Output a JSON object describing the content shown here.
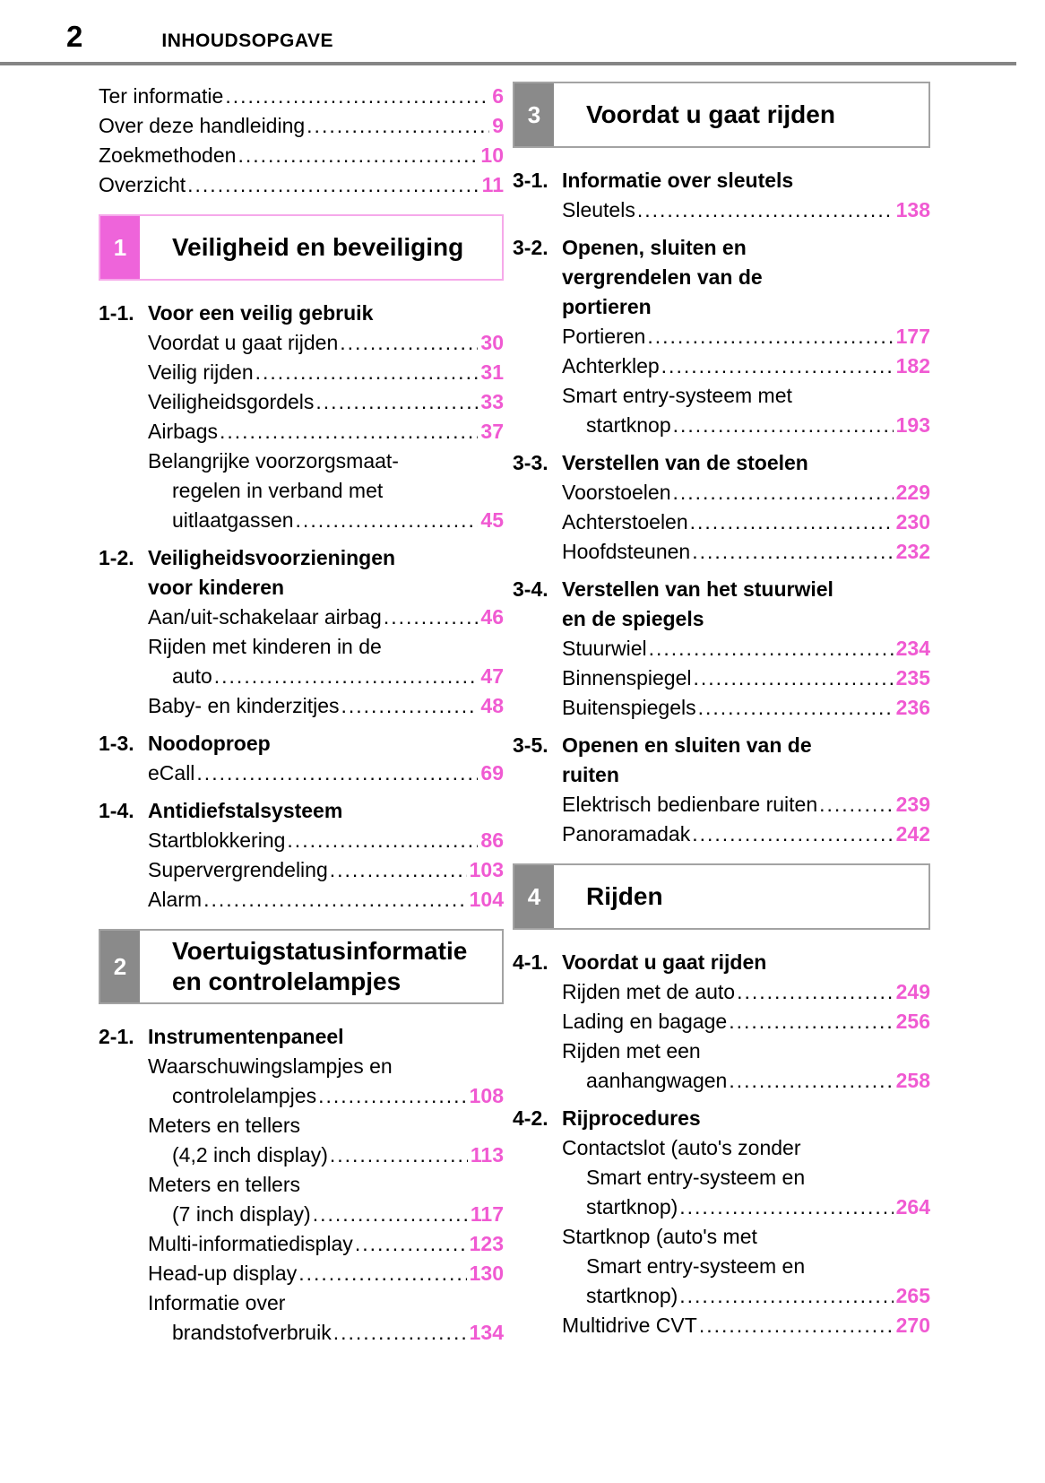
{
  "colors": {
    "chapter_tab_pink": "#ee64da",
    "chapter_box_border_pink": "#f6a9ea",
    "chapter_tab_gray": "#8a8a8a",
    "chapter_box_border_gray": "#a3a3a3",
    "header_rule_gray": "#858585",
    "page_number_pink": "#f05ad2"
  },
  "header": {
    "page_number": "2",
    "title": "INHOUDSOPGAVE"
  },
  "columns": {
    "left": [
      {
        "type": "toc_top",
        "items": [
          {
            "label": "Ter informatie",
            "page": "6"
          },
          {
            "label": "Over deze handleiding",
            "page": "9"
          },
          {
            "label": "Zoekmethoden",
            "page": "10"
          },
          {
            "label": "Overzicht",
            "page": "11"
          }
        ]
      },
      {
        "type": "chapter",
        "num": "1",
        "accent": "pink",
        "title_lines": [
          "Veiligheid en beveiliging"
        ]
      },
      {
        "type": "section",
        "num": "1-1.",
        "title_lines": [
          "Voor een veilig gebruik"
        ]
      },
      {
        "type": "entry",
        "lines": [
          "Voordat u gaat rijden"
        ],
        "page": "30"
      },
      {
        "type": "entry",
        "lines": [
          "Veilig rijden"
        ],
        "page": "31"
      },
      {
        "type": "entry",
        "lines": [
          "Veiligheidsgordels"
        ],
        "page": "33"
      },
      {
        "type": "entry",
        "lines": [
          "Airbags"
        ],
        "page": "37"
      },
      {
        "type": "entry",
        "lines": [
          "Belangrijke voorzorgsmaat-",
          "regelen in verband met",
          "uitlaatgassen"
        ],
        "page": "45"
      },
      {
        "type": "section",
        "num": "1-2.",
        "title_lines": [
          "Veiligheidsvoorzieningen",
          "voor kinderen"
        ]
      },
      {
        "type": "entry",
        "lines": [
          "Aan/uit-schakelaar airbag"
        ],
        "page": "46"
      },
      {
        "type": "entry",
        "lines": [
          "Rijden met kinderen in de",
          "auto"
        ],
        "page": "47"
      },
      {
        "type": "entry",
        "lines": [
          "Baby- en kinderzitjes"
        ],
        "page": "48"
      },
      {
        "type": "section",
        "num": "1-3.",
        "title_lines": [
          "Noodoproep"
        ]
      },
      {
        "type": "entry",
        "lines": [
          "eCall"
        ],
        "page": "69"
      },
      {
        "type": "section",
        "num": "1-4.",
        "title_lines": [
          "Antidiefstalsysteem"
        ]
      },
      {
        "type": "entry",
        "lines": [
          "Startblokkering"
        ],
        "page": "86"
      },
      {
        "type": "entry",
        "lines": [
          "Supervergrendeling"
        ],
        "page": "103"
      },
      {
        "type": "entry",
        "lines": [
          "Alarm"
        ],
        "page": "104"
      },
      {
        "type": "chapter",
        "num": "2",
        "accent": "gray",
        "title_lines": [
          "Voertuigstatusinformatie",
          "en controlelampjes"
        ]
      },
      {
        "type": "section",
        "num": "2-1.",
        "title_lines": [
          "Instrumentenpaneel"
        ]
      },
      {
        "type": "entry",
        "lines": [
          "Waarschuwingslampjes en",
          "controlelampjes"
        ],
        "page": "108"
      },
      {
        "type": "entry",
        "lines": [
          "Meters en tellers",
          "(4,2 inch display)"
        ],
        "page": "113"
      },
      {
        "type": "entry",
        "lines": [
          "Meters en tellers",
          "(7 inch display)"
        ],
        "page": "117"
      },
      {
        "type": "entry",
        "lines": [
          "Multi-informatiedisplay"
        ],
        "page": "123"
      },
      {
        "type": "entry",
        "lines": [
          "Head-up display"
        ],
        "page": "130"
      },
      {
        "type": "entry",
        "lines": [
          "Informatie over",
          "brandstofverbruik"
        ],
        "page": "134"
      }
    ],
    "right": [
      {
        "type": "chapter",
        "num": "3",
        "accent": "gray",
        "title_lines": [
          "Voordat u gaat rijden"
        ]
      },
      {
        "type": "section",
        "num": "3-1.",
        "title_lines": [
          "Informatie over sleutels"
        ]
      },
      {
        "type": "entry",
        "lines": [
          "Sleutels"
        ],
        "page": "138"
      },
      {
        "type": "section",
        "num": "3-2.",
        "title_lines": [
          "Openen, sluiten en",
          "vergrendelen van de",
          "portieren"
        ]
      },
      {
        "type": "entry",
        "lines": [
          "Portieren"
        ],
        "page": "177"
      },
      {
        "type": "entry",
        "lines": [
          "Achterklep"
        ],
        "page": "182"
      },
      {
        "type": "entry",
        "lines": [
          "Smart entry-systeem met",
          "startknop"
        ],
        "page": "193"
      },
      {
        "type": "section",
        "num": "3-3.",
        "title_lines": [
          "Verstellen van de stoelen"
        ]
      },
      {
        "type": "entry",
        "lines": [
          "Voorstoelen"
        ],
        "page": "229"
      },
      {
        "type": "entry",
        "lines": [
          "Achterstoelen"
        ],
        "page": "230"
      },
      {
        "type": "entry",
        "lines": [
          "Hoofdsteunen"
        ],
        "page": "232"
      },
      {
        "type": "section",
        "num": "3-4.",
        "title_lines": [
          "Verstellen van het stuurwiel",
          "en de spiegels"
        ]
      },
      {
        "type": "entry",
        "lines": [
          "Stuurwiel"
        ],
        "page": "234"
      },
      {
        "type": "entry",
        "lines": [
          "Binnenspiegel"
        ],
        "page": "235"
      },
      {
        "type": "entry",
        "lines": [
          "Buitenspiegels"
        ],
        "page": "236"
      },
      {
        "type": "section",
        "num": "3-5.",
        "title_lines": [
          "Openen en sluiten van de",
          "ruiten"
        ]
      },
      {
        "type": "entry",
        "lines": [
          "Elektrisch bedienbare ruiten"
        ],
        "page": "239"
      },
      {
        "type": "entry",
        "lines": [
          "Panoramadak"
        ],
        "page": "242"
      },
      {
        "type": "chapter",
        "num": "4",
        "accent": "gray",
        "title_lines": [
          "Rijden"
        ]
      },
      {
        "type": "section",
        "num": "4-1.",
        "title_lines": [
          "Voordat u gaat rijden"
        ]
      },
      {
        "type": "entry",
        "lines": [
          "Rijden met de auto"
        ],
        "page": "249"
      },
      {
        "type": "entry",
        "lines": [
          "Lading en bagage"
        ],
        "page": "256"
      },
      {
        "type": "entry",
        "lines": [
          "Rijden met een",
          "aanhangwagen"
        ],
        "page": "258"
      },
      {
        "type": "section",
        "num": "4-2.",
        "title_lines": [
          "Rijprocedures"
        ]
      },
      {
        "type": "entry",
        "lines": [
          "Contactslot (auto's zonder",
          "Smart entry-systeem en",
          "startknop)"
        ],
        "page": "264"
      },
      {
        "type": "entry",
        "lines": [
          "Startknop (auto's met",
          "Smart entry-systeem en",
          "startknop)"
        ],
        "page": "265"
      },
      {
        "type": "entry",
        "lines": [
          "Multidrive CVT"
        ],
        "page": "270"
      }
    ]
  }
}
